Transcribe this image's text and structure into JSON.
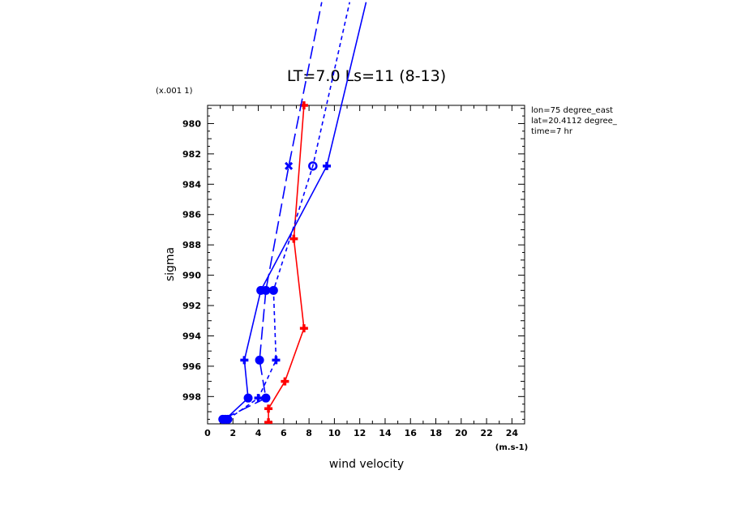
{
  "chart_data": {
    "type": "line",
    "title": "LT=7.0 Ls=11 (8-13)",
    "xlabel": "wind velocity",
    "ylabel": "sigma",
    "x_unit": "(m.s-1)",
    "y_scale_note": "(x.001 1)",
    "xlim": [
      0,
      25
    ],
    "ylim": [
      999.8,
      978.8
    ],
    "x_ticks": [
      "0",
      "2",
      "4",
      "6",
      "8",
      "10",
      "12",
      "14",
      "16",
      "18",
      "20",
      "22",
      "24"
    ],
    "y_ticks": [
      "980",
      "982",
      "984",
      "986",
      "988",
      "990",
      "992",
      "994",
      "996",
      "998"
    ],
    "annotations": [
      "lon=75 degree_east",
      "lat=20.4112 degree_",
      "time=7 hr"
    ],
    "series": [
      {
        "color": "#ff0000",
        "dash": "solid",
        "marker": "plus",
        "x": [
          4.8,
          4.8,
          6.1,
          7.6,
          6.8,
          7.6
        ],
        "y": [
          999.7,
          998.8,
          997.0,
          993.5,
          987.6,
          978.8
        ]
      },
      {
        "color": "#0000ff",
        "dash": "solid",
        "marker": "mixed",
        "x": [
          1.4,
          3.2,
          2.9,
          4.2,
          9.4,
          12.5
        ],
        "y": [
          999.5,
          998.1,
          995.6,
          991.0,
          982.8,
          972.0
        ]
      },
      {
        "color": "#0000ff",
        "dash": "long",
        "marker": "mixed",
        "x": [
          1.2,
          4.6,
          4.1,
          4.6,
          6.4,
          9.0
        ],
        "y": [
          999.5,
          998.1,
          995.6,
          991.0,
          982.8,
          972.0
        ]
      },
      {
        "color": "#0000ff",
        "dash": "short",
        "marker": "mixed",
        "x": [
          1.6,
          4.0,
          5.4,
          5.2,
          8.3,
          11.2
        ],
        "y": [
          999.5,
          998.1,
          995.6,
          991.0,
          982.8,
          972.0
        ]
      }
    ]
  }
}
